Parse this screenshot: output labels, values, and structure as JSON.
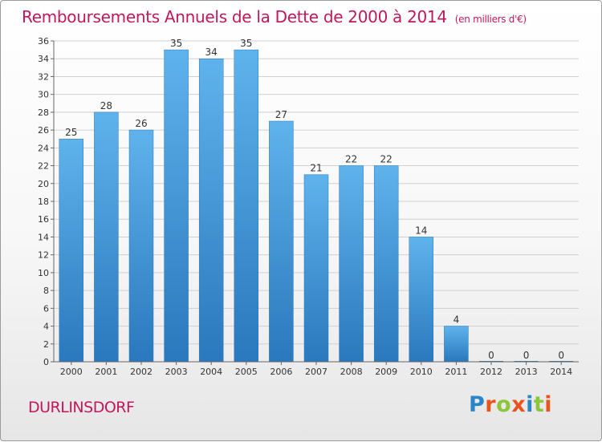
{
  "title": "Remboursements Annuels de la Dette de 2000 à 2014",
  "unit_note": "(en milliers d'€)",
  "commune": "DURLINSDORF",
  "logo": {
    "text": "Proxiti",
    "letter_colors": [
      "#2a86c8",
      "#e8541c",
      "#8cc63f",
      "#e8541c",
      "#2a86c8",
      "#8cc63f",
      "#e8541c"
    ]
  },
  "colors": {
    "title": "#c2185b",
    "bar_light": "#5fb3ec",
    "bar_dark": "#2a78bd",
    "axis": "#666666",
    "grid": "#d0d0d0",
    "label": "#333333"
  },
  "chart_data": {
    "type": "bar",
    "categories": [
      "2000",
      "2001",
      "2002",
      "2003",
      "2004",
      "2005",
      "2006",
      "2007",
      "2008",
      "2009",
      "2010",
      "2011",
      "2012",
      "2013",
      "2014"
    ],
    "values": [
      25,
      28,
      26,
      35,
      34,
      35,
      27,
      21,
      22,
      22,
      14,
      4,
      0,
      0,
      0
    ],
    "data_labels": [
      "25",
      "28",
      "26",
      "35",
      "34",
      "35",
      "27",
      "21",
      "22",
      "22",
      "14",
      "4",
      "0",
      "0",
      "0"
    ],
    "y_ticks": [
      "0",
      "2",
      "4",
      "6",
      "8",
      "10",
      "12",
      "14",
      "16",
      "18",
      "20",
      "22",
      "24",
      "26",
      "28",
      "30",
      "32",
      "34",
      "36"
    ],
    "ylim": [
      0,
      36
    ],
    "grid": true
  }
}
